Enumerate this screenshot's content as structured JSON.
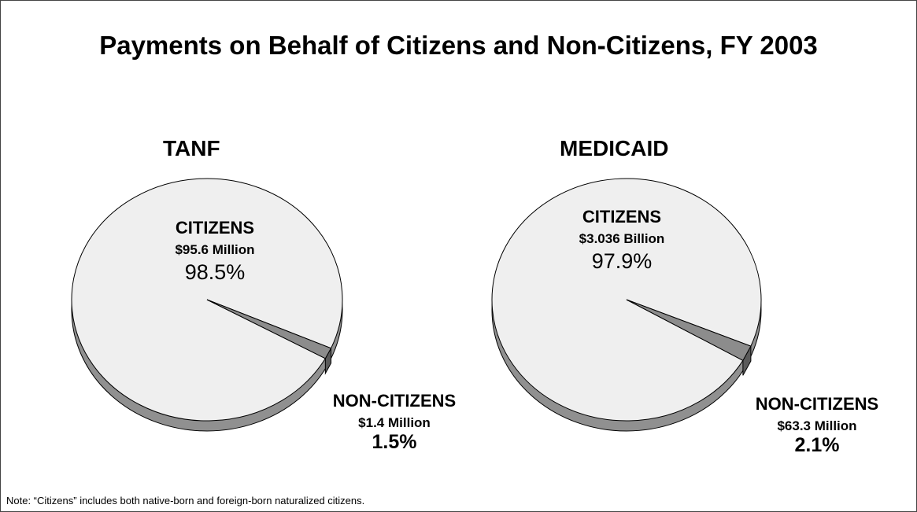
{
  "title": "Payments on Behalf of Citizens and Non-Citizens, FY 2003",
  "note": "Note:  “Citizens” includes both native-born and foreign-born naturalized citizens.",
  "colors": {
    "citizens": "#efefef",
    "noncitizens": "#8c8c8c",
    "side": "#909090",
    "outline": "#000000"
  },
  "chart_data": [
    {
      "type": "pie",
      "title": "TANF",
      "slices": [
        {
          "name": "CITIZENS",
          "amount": "$95.6 Million",
          "pct_label": "98.5%",
          "value": 98.5
        },
        {
          "name": "NON-CITIZENS",
          "amount": "$1.4 Million",
          "pct_label": "1.5%",
          "value": 1.5
        }
      ]
    },
    {
      "type": "pie",
      "title": "MEDICAID",
      "slices": [
        {
          "name": "CITIZENS",
          "amount": "$3.036 Billion",
          "pct_label": "97.9%",
          "value": 97.9
        },
        {
          "name": "NON-CITIZENS",
          "amount": "$63.3 Million",
          "pct_label": "2.1%",
          "value": 2.1
        }
      ]
    }
  ]
}
